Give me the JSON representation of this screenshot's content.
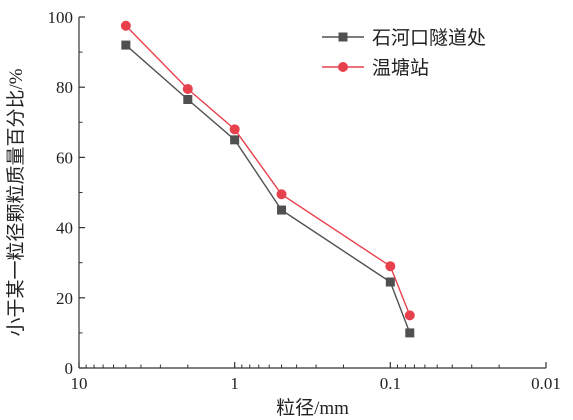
{
  "chart_data": {
    "type": "line",
    "title": "",
    "xlabel": "粒径/mm",
    "ylabel": "小于某一粒径颗粒质量百分比/%",
    "x_scale": "log",
    "x_reversed": true,
    "xlim": [
      10,
      0.01
    ],
    "ylim": [
      0,
      100
    ],
    "x_ticks": [
      10,
      1,
      0.1,
      0.01
    ],
    "x_tick_labels": [
      "10",
      "1",
      "0.1",
      "0.01"
    ],
    "y_ticks": [
      0,
      20,
      40,
      60,
      80,
      100
    ],
    "y_tick_labels": [
      "0",
      "20",
      "40",
      "60",
      "80",
      "100"
    ],
    "grid": false,
    "legend_position": "top-right",
    "series": [
      {
        "name": "石河口隧道处",
        "marker": "square",
        "color": "#505050",
        "x": [
          5,
          2,
          1,
          0.5,
          0.1,
          0.075
        ],
        "y": [
          92,
          76.5,
          65,
          45,
          24.5,
          10
        ]
      },
      {
        "name": "温塘站",
        "marker": "circle",
        "color": "#e8414e",
        "x": [
          5,
          2,
          1,
          0.5,
          0.1,
          0.075
        ],
        "y": [
          97.5,
          79.5,
          68,
          49.5,
          29,
          15
        ]
      }
    ]
  }
}
